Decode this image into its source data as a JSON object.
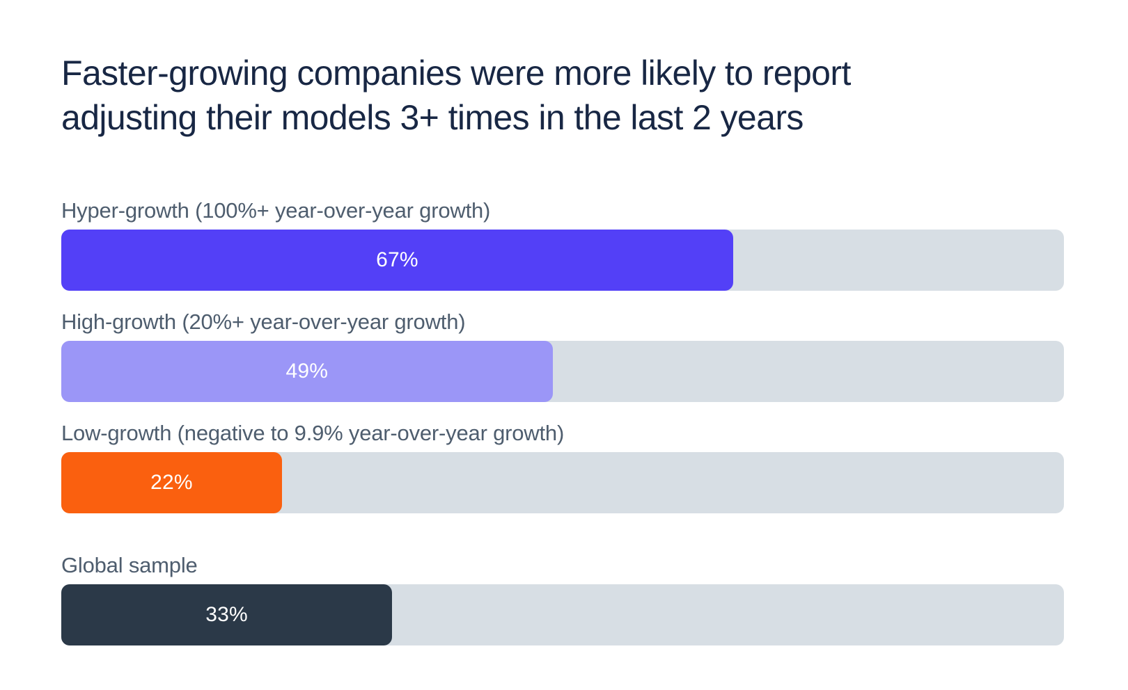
{
  "colors": {
    "background": "#ffffff",
    "title_text": "#182744",
    "label_text": "#4E5D6E",
    "value_text": "#ffffff",
    "track": "#D7DEE4"
  },
  "chart": {
    "title_line1": "Faster-growing companies were more likely to report",
    "title_line2": "adjusting their models 3+ times in the last 2 years"
  },
  "chart_data": {
    "type": "bar",
    "orientation": "horizontal",
    "title": "Faster-growing companies were more likely to report adjusting their models 3+ times in the last 2 years",
    "categories": [
      "Hyper-growth (100%+ year-over-year growth)",
      "High-growth (20%+ year-over-year growth)",
      "Low-growth (negative to 9.9% year-over-year growth)",
      "Global sample"
    ],
    "values": [
      67,
      49,
      22,
      33
    ],
    "value_labels": [
      "67%",
      "49%",
      "22%",
      "33%"
    ],
    "bar_colors": [
      "#5340F7",
      "#9B96F7",
      "#FA600F",
      "#2B3948"
    ],
    "track_color": "#D7DEE4",
    "xlabel": "",
    "ylabel": "",
    "xlim": [
      0,
      100
    ],
    "grid": false,
    "legend": false,
    "value_label_position": "inside-center",
    "category_label_position": "above-bar"
  }
}
